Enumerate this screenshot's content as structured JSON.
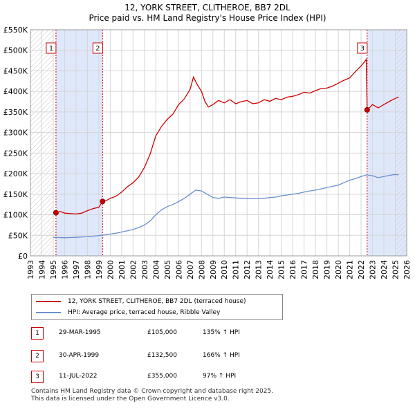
{
  "title_line1": "12, YORK STREET, CLITHEROE, BB7 2DL",
  "title_line2": "Price paid vs. HM Land Registry's House Price Index (HPI)",
  "colors": {
    "property": "#cc0000",
    "hpi": "#6a8fd0",
    "shade": "#dfe8fb",
    "grid": "#d5d5d5"
  },
  "chart_data": {
    "type": "line",
    "title": "Price paid vs. HM Land Registry's House Price Index (HPI)",
    "xlabel": "",
    "ylabel": "",
    "xlim": [
      1993,
      2026
    ],
    "ylim": [
      0,
      550000
    ],
    "x_ticks": [
      1993,
      1994,
      1995,
      1996,
      1997,
      1998,
      1999,
      2000,
      2001,
      2002,
      2003,
      2004,
      2005,
      2006,
      2007,
      2008,
      2009,
      2010,
      2011,
      2012,
      2013,
      2014,
      2015,
      2016,
      2017,
      2018,
      2019,
      2020,
      2021,
      2022,
      2023,
      2024,
      2025,
      2026
    ],
    "y_ticks": [
      {
        "value": 0,
        "label": "£0"
      },
      {
        "value": 50000,
        "label": "£50K"
      },
      {
        "value": 100000,
        "label": "£100K"
      },
      {
        "value": 150000,
        "label": "£150K"
      },
      {
        "value": 200000,
        "label": "£200K"
      },
      {
        "value": 250000,
        "label": "£250K"
      },
      {
        "value": 300000,
        "label": "£300K"
      },
      {
        "value": 350000,
        "label": "£350K"
      },
      {
        "value": 400000,
        "label": "£400K"
      },
      {
        "value": 450000,
        "label": "£450K"
      },
      {
        "value": 500000,
        "label": "£500K"
      },
      {
        "value": 550000,
        "label": "£550K"
      }
    ],
    "shaded_ranges": [
      [
        1995.24,
        1999.33
      ],
      [
        2022.53,
        2026
      ]
    ],
    "hatched_ranges": [
      [
        1993,
        1995.0
      ],
      [
        2025.0,
        2026
      ]
    ],
    "series": [
      {
        "name": "12, YORK STREET, CLITHEROE, BB7 2DL (terraced house)",
        "x": [
          1995.24,
          1995.6,
          1996,
          1996.5,
          1997,
          1997.5,
          1998,
          1998.5,
          1999,
          1999.33,
          1999.7,
          2000,
          2000.5,
          2001,
          2001.5,
          2002,
          2002.5,
          2003,
          2003.5,
          2004,
          2004.5,
          2005,
          2005.5,
          2006,
          2006.5,
          2007,
          2007.3,
          2007.6,
          2008,
          2008.3,
          2008.6,
          2009,
          2009.5,
          2010,
          2010.5,
          2011,
          2011.5,
          2012,
          2012.5,
          2013,
          2013.5,
          2014,
          2014.5,
          2015,
          2015.5,
          2016,
          2016.5,
          2017,
          2017.5,
          2018,
          2018.5,
          2019,
          2019.5,
          2020,
          2020.5,
          2021,
          2021.5,
          2022,
          2022.3,
          2022.45,
          2022.53,
          2022.8,
          2023,
          2023.5,
          2024,
          2024.5,
          2025,
          2025.3
        ],
        "values": [
          105000,
          108000,
          104000,
          103000,
          102000,
          104000,
          110000,
          115000,
          118000,
          132500,
          135000,
          140000,
          145000,
          155000,
          168000,
          178000,
          192000,
          215000,
          248000,
          292000,
          315000,
          332000,
          345000,
          368000,
          382000,
          405000,
          435000,
          418000,
          400000,
          376000,
          362000,
          368000,
          378000,
          372000,
          380000,
          370000,
          375000,
          378000,
          370000,
          372000,
          380000,
          376000,
          383000,
          380000,
          386000,
          388000,
          392000,
          398000,
          396000,
          402000,
          407000,
          408000,
          413000,
          420000,
          427000,
          433000,
          448000,
          462000,
          472000,
          478000,
          355000,
          362000,
          368000,
          360000,
          368000,
          376000,
          383000,
          386000
        ]
      },
      {
        "name": "HPI: Average price, terraced house, Ribble Valley",
        "x": [
          1995,
          1995.5,
          1996,
          1996.5,
          1997,
          1997.5,
          1998,
          1998.5,
          1999,
          1999.5,
          2000,
          2000.5,
          2001,
          2001.5,
          2002,
          2002.5,
          2003,
          2003.5,
          2004,
          2004.5,
          2005,
          2005.5,
          2006,
          2006.5,
          2007,
          2007.5,
          2008,
          2008.5,
          2009,
          2009.5,
          2010,
          2010.5,
          2011,
          2011.5,
          2012,
          2012.5,
          2013,
          2013.5,
          2014,
          2014.5,
          2015,
          2015.5,
          2016,
          2016.5,
          2017,
          2017.5,
          2018,
          2018.5,
          2019,
          2019.5,
          2020,
          2020.5,
          2021,
          2021.5,
          2022,
          2022.5,
          2023,
          2023.5,
          2024,
          2024.5,
          2025,
          2025.3
        ],
        "values": [
          45000,
          44500,
          44000,
          44500,
          45000,
          46000,
          47000,
          48000,
          49500,
          51000,
          53000,
          55000,
          58000,
          61000,
          64000,
          69000,
          75000,
          85000,
          100000,
          112000,
          120000,
          125000,
          132000,
          140000,
          150000,
          160000,
          158000,
          150000,
          142000,
          140000,
          143000,
          142000,
          141000,
          140000,
          140000,
          139000,
          139000,
          140000,
          142000,
          143000,
          146000,
          148000,
          150000,
          152000,
          155000,
          158000,
          160000,
          163000,
          166000,
          169000,
          172000,
          178000,
          184000,
          188000,
          193000,
          197000,
          195000,
          190000,
          193000,
          196000,
          198000,
          197000
        ]
      }
    ],
    "markers": [
      {
        "label": "1",
        "x": 1995.24,
        "value": 105000
      },
      {
        "label": "2",
        "x": 1999.33,
        "value": 132500
      },
      {
        "label": "3",
        "x": 2022.53,
        "value": 355000
      }
    ]
  },
  "legend": {
    "property_label": "12, YORK STREET, CLITHEROE, BB7 2DL (terraced house)",
    "hpi_label": "HPI: Average price, terraced house, Ribble Valley"
  },
  "sales": [
    {
      "num": "1",
      "date": "29-MAR-1995",
      "price": "£105,000",
      "hpi": "135% ↑ HPI"
    },
    {
      "num": "2",
      "date": "30-APR-1999",
      "price": "£132,500",
      "hpi": "166% ↑ HPI"
    },
    {
      "num": "3",
      "date": "11-JUL-2022",
      "price": "£355,000",
      "hpi": "97% ↑ HPI"
    }
  ],
  "footer": {
    "line1": "Contains HM Land Registry data © Crown copyright and database right 2025.",
    "line2": "This data is licensed under the Open Government Licence v3.0."
  }
}
